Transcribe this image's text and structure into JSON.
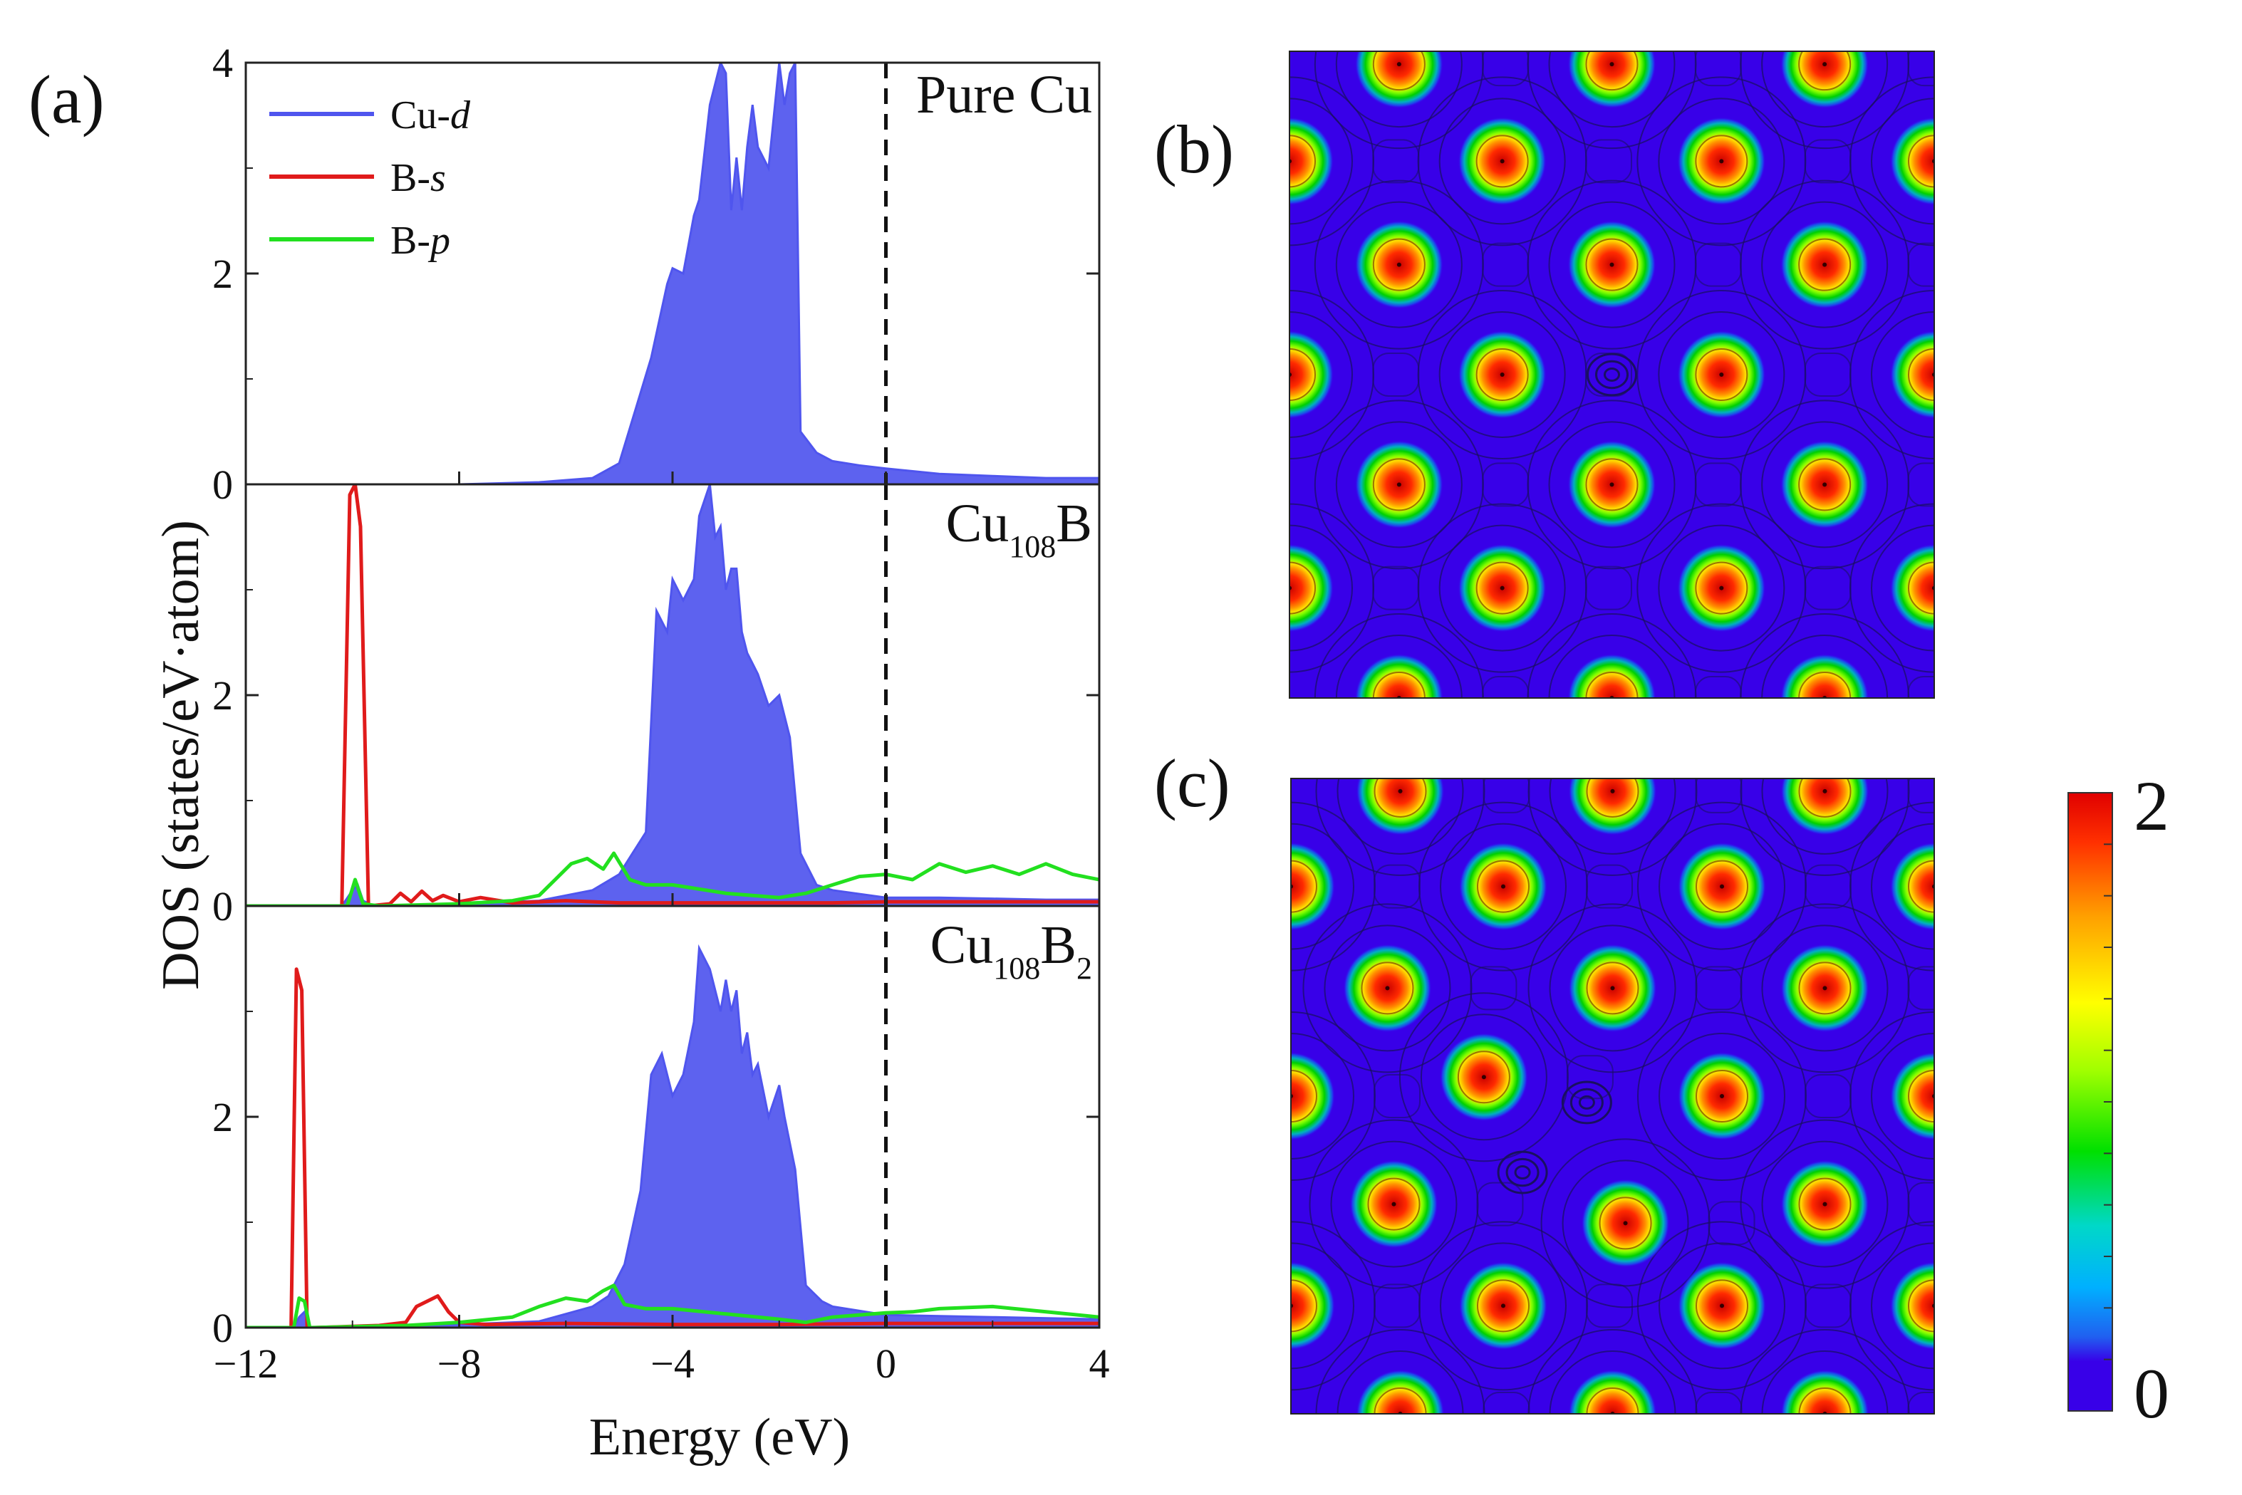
{
  "panel_labels": [
    "(a)",
    "(b)",
    "(c)"
  ],
  "chart_data": [
    {
      "type": "area",
      "title": "",
      "xlabel": "Energy (eV)",
      "ylabel": "DOS (states/eV·atom)",
      "xlim": [
        -12,
        4
      ],
      "ylim": [
        0,
        4
      ],
      "xticks": [
        -12,
        -8,
        -4,
        0,
        4
      ],
      "xtick_labels": [
        "−12",
        "−8",
        "−4",
        "0",
        "4"
      ],
      "yticks": [
        0,
        2,
        4
      ],
      "fermi_level": 0,
      "legend": {
        "position": "top-left",
        "entries": [
          {
            "prefix": "Cu-",
            "suffix": "d",
            "color": "#4f55ee"
          },
          {
            "prefix": "B-",
            "suffix": "s",
            "color": "#e01b1b"
          },
          {
            "prefix": "B-",
            "suffix": "p",
            "color": "#22e01f"
          }
        ]
      },
      "panels": [
        {
          "label": {
            "base": "Pure Cu",
            "sub": "",
            "base2": "",
            "sub2": ""
          },
          "ytick_labels": [
            "0",
            "2",
            "4"
          ],
          "series": [
            {
              "name": "Cu-d",
              "fill": true,
              "color": "#4f55ee",
              "x": [
                -12,
                -8,
                -6.5,
                -5.5,
                -5.0,
                -4.7,
                -4.4,
                -4.1,
                -4.0,
                -3.8,
                -3.6,
                -3.5,
                -3.3,
                -3.1,
                -3.0,
                -2.9,
                -2.8,
                -2.7,
                -2.6,
                -2.5,
                -2.4,
                -2.2,
                -2.0,
                -1.9,
                -1.8,
                -1.7,
                -1.6,
                -1.3,
                -1.0,
                -0.5,
                0,
                1,
                2,
                3,
                4
              ],
              "y": [
                0,
                0.0,
                0.02,
                0.06,
                0.2,
                0.7,
                1.2,
                1.9,
                2.05,
                2.0,
                2.55,
                2.7,
                3.6,
                4.0,
                3.9,
                2.6,
                3.1,
                2.6,
                3.2,
                3.6,
                3.2,
                3.0,
                4.0,
                3.6,
                3.9,
                4.0,
                0.5,
                0.3,
                0.22,
                0.18,
                0.15,
                0.1,
                0.08,
                0.06,
                0.06
              ]
            }
          ]
        },
        {
          "label": {
            "base": "Cu",
            "sub": "108",
            "base2": "B",
            "sub2": ""
          },
          "ytick_labels": [
            "0",
            "2",
            ""
          ],
          "series": [
            {
              "name": "Cu-d",
              "fill": true,
              "color": "#4f55ee",
              "x": [
                -12,
                -10.2,
                -10.0,
                -9.9,
                -9.8,
                -9.6,
                -8,
                -6.5,
                -5.5,
                -5.0,
                -4.5,
                -4.3,
                -4.1,
                -4.0,
                -3.8,
                -3.6,
                -3.5,
                -3.3,
                -3.2,
                -3.1,
                -3.0,
                -2.9,
                -2.8,
                -2.7,
                -2.6,
                -2.5,
                -2.4,
                -2.2,
                -2.0,
                -1.8,
                -1.6,
                -1.3,
                -1.0,
                0,
                1,
                2,
                3,
                4
              ],
              "y": [
                0,
                0,
                0.15,
                0.2,
                0.05,
                0,
                0.02,
                0.05,
                0.15,
                0.3,
                0.7,
                2.8,
                2.6,
                3.1,
                2.9,
                3.1,
                3.7,
                4.0,
                3.5,
                3.6,
                3.0,
                3.2,
                3.2,
                2.6,
                2.4,
                2.3,
                2.2,
                1.9,
                2.0,
                1.6,
                0.5,
                0.2,
                0.15,
                0.08,
                0.08,
                0.07,
                0.06,
                0.06
              ]
            },
            {
              "name": "B-s",
              "fill": false,
              "color": "#e01b1b",
              "x": [
                -12,
                -10.2,
                -10.05,
                -9.95,
                -9.85,
                -9.7,
                -9.3,
                -9.1,
                -8.9,
                -8.7,
                -8.5,
                -8.3,
                -8,
                -7.6,
                -7,
                -6,
                -5,
                -3,
                -1,
                0,
                2,
                4
              ],
              "y": [
                0,
                0,
                3.9,
                4.0,
                3.6,
                0,
                0.02,
                0.12,
                0.04,
                0.14,
                0.05,
                0.1,
                0.04,
                0.08,
                0.03,
                0.05,
                0.03,
                0.03,
                0.03,
                0.04,
                0.04,
                0.04
              ]
            },
            {
              "name": "B-p",
              "fill": false,
              "color": "#22e01f",
              "x": [
                -12,
                -10.1,
                -9.95,
                -9.8,
                -9.5,
                -8,
                -7,
                -6.5,
                -6.2,
                -5.9,
                -5.6,
                -5.3,
                -5.1,
                -4.8,
                -4.5,
                -4.0,
                -3,
                -2,
                -1.5,
                -1.0,
                -0.5,
                0,
                0.5,
                1,
                1.5,
                2,
                2.5,
                3,
                3.5,
                4
              ],
              "y": [
                0,
                0,
                0.25,
                0.02,
                0,
                0.02,
                0.05,
                0.1,
                0.25,
                0.4,
                0.45,
                0.35,
                0.5,
                0.25,
                0.2,
                0.2,
                0.12,
                0.08,
                0.12,
                0.2,
                0.28,
                0.3,
                0.25,
                0.4,
                0.32,
                0.38,
                0.3,
                0.4,
                0.3,
                0.25
              ]
            }
          ]
        },
        {
          "label": {
            "base": "Cu",
            "sub": "108",
            "base2": "B",
            "sub2": "2"
          },
          "ytick_labels": [
            "0",
            "2",
            ""
          ],
          "series": [
            {
              "name": "Cu-d",
              "fill": true,
              "color": "#4f55ee",
              "x": [
                -12,
                -11.1,
                -11.0,
                -10.9,
                -10.8,
                -9,
                -8,
                -6.5,
                -5.5,
                -5.2,
                -4.9,
                -4.6,
                -4.4,
                -4.2,
                -4.0,
                -3.8,
                -3.6,
                -3.5,
                -3.3,
                -3.1,
                -3.0,
                -2.9,
                -2.8,
                -2.7,
                -2.6,
                -2.5,
                -2.4,
                -2.2,
                -2.0,
                -1.9,
                -1.7,
                -1.5,
                -1.2,
                -1.0,
                0,
                2,
                4
              ],
              "y": [
                0,
                0,
                0.1,
                0.15,
                0,
                0.02,
                0.03,
                0.06,
                0.2,
                0.3,
                0.6,
                1.3,
                2.4,
                2.6,
                2.2,
                2.4,
                2.9,
                3.6,
                3.4,
                3.0,
                3.3,
                3.0,
                3.2,
                2.6,
                2.8,
                2.4,
                2.5,
                2.0,
                2.3,
                2.0,
                1.5,
                0.4,
                0.25,
                0.2,
                0.12,
                0.1,
                0.08
              ]
            },
            {
              "name": "B-s",
              "fill": false,
              "color": "#e01b1b",
              "x": [
                -12,
                -11.15,
                -11.05,
                -10.95,
                -10.85,
                -10.7,
                -9.5,
                -9.0,
                -8.8,
                -8.6,
                -8.4,
                -8.2,
                -8.0,
                -7.5,
                -6,
                -4,
                -2,
                0,
                2,
                4
              ],
              "y": [
                0,
                0,
                3.4,
                3.2,
                0,
                0,
                0.02,
                0.05,
                0.2,
                0.25,
                0.3,
                0.15,
                0.05,
                0.03,
                0.04,
                0.03,
                0.03,
                0.04,
                0.04,
                0.04
              ]
            },
            {
              "name": "B-p",
              "fill": false,
              "color": "#22e01f",
              "x": [
                -12,
                -11.1,
                -11.0,
                -10.9,
                -10.8,
                -9,
                -8,
                -7,
                -6.5,
                -6.0,
                -5.6,
                -5.3,
                -5.1,
                -4.9,
                -4.5,
                -4.0,
                -3,
                -2,
                -1.5,
                -1,
                -0.5,
                0,
                0.5,
                1,
                2,
                3,
                4
              ],
              "y": [
                0,
                0,
                0.28,
                0.25,
                0,
                0.02,
                0.05,
                0.1,
                0.2,
                0.28,
                0.25,
                0.35,
                0.4,
                0.22,
                0.18,
                0.18,
                0.13,
                0.08,
                0.05,
                0.1,
                0.12,
                0.14,
                0.15,
                0.18,
                0.2,
                0.15,
                0.1
              ]
            }
          ]
        }
      ]
    },
    {
      "type": "heatmap",
      "title": "",
      "colorbar": {
        "min": 0,
        "max": 2,
        "labels": [
          "2",
          "0"
        ],
        "stops": [
          "#3800e8",
          "#2020f0",
          "#00a0ff",
          "#00e0e0",
          "#00e000",
          "#b0ff00",
          "#ffff00",
          "#ffa000",
          "#ff2a00",
          "#e00000"
        ]
      },
      "maps": [
        {
          "panel": "b",
          "atoms": [
            [
              0.17,
              0.02
            ],
            [
              0.5,
              0.02
            ],
            [
              0.83,
              0.02
            ],
            [
              0,
              0.17
            ],
            [
              0.33,
              0.17
            ],
            [
              0.67,
              0.17
            ],
            [
              1,
              0.17
            ],
            [
              0.17,
              0.33
            ],
            [
              0.5,
              0.33
            ],
            [
              0.83,
              0.33
            ],
            [
              0,
              0.5
            ],
            [
              0.33,
              0.5
            ],
            [
              0.67,
              0.5
            ],
            [
              1,
              0.5
            ],
            [
              0.17,
              0.67
            ],
            [
              0.5,
              0.67
            ],
            [
              0.83,
              0.67
            ],
            [
              0,
              0.83
            ],
            [
              0.33,
              0.83
            ],
            [
              0.67,
              0.83
            ],
            [
              1,
              0.83
            ],
            [
              0.17,
              1
            ],
            [
              0.5,
              1
            ],
            [
              0.83,
              1
            ]
          ],
          "boron": [
            [
              0.5,
              0.5
            ]
          ]
        },
        {
          "panel": "c",
          "atoms": [
            [
              0.17,
              0.02
            ],
            [
              0.5,
              0.02
            ],
            [
              0.83,
              0.02
            ],
            [
              0,
              0.17
            ],
            [
              0.33,
              0.17
            ],
            [
              0.67,
              0.17
            ],
            [
              1,
              0.17
            ],
            [
              0.15,
              0.33
            ],
            [
              0.5,
              0.33
            ],
            [
              0.83,
              0.33
            ],
            [
              0,
              0.5
            ],
            [
              0.3,
              0.47
            ],
            [
              0.67,
              0.5
            ],
            [
              1,
              0.5
            ],
            [
              0.16,
              0.67
            ],
            [
              0.52,
              0.7
            ],
            [
              0.83,
              0.67
            ],
            [
              0,
              0.83
            ],
            [
              0.33,
              0.83
            ],
            [
              0.67,
              0.83
            ],
            [
              1,
              0.83
            ],
            [
              0.17,
              1
            ],
            [
              0.5,
              1
            ],
            [
              0.83,
              1
            ]
          ],
          "boron": [
            [
              0.46,
              0.51
            ],
            [
              0.36,
              0.62
            ]
          ]
        }
      ]
    }
  ]
}
